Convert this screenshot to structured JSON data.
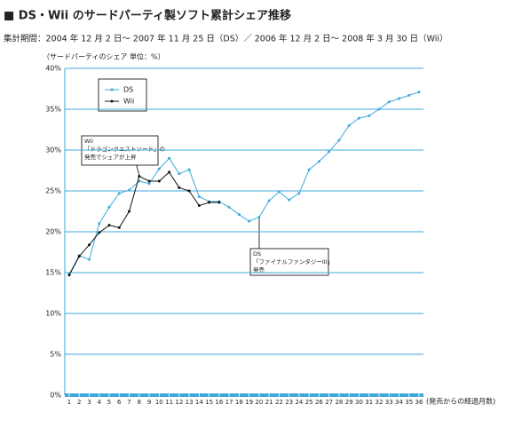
{
  "chart_data": {
    "type": "line",
    "title": "■ DS・Wii のサードパーティ製ソフト累計シェア推移",
    "subtitle": "集計期間：2004 年 12 月 2 日～ 2007 年 11 月 25 日（DS）／ 2006 年 12 月 2 日～ 2008 年 3 月 30 日（Wii）",
    "y_label": "（サードパーティのシェア 単位：%）",
    "x_label": "(発売からの経過月数)",
    "categories": [
      1,
      2,
      3,
      4,
      5,
      6,
      7,
      8,
      9,
      10,
      11,
      12,
      13,
      14,
      15,
      16,
      17,
      18,
      19,
      20,
      21,
      22,
      23,
      24,
      25,
      26,
      27,
      28,
      29,
      30,
      31,
      32,
      33,
      34,
      35,
      36
    ],
    "series": [
      {
        "name": "DS",
        "color": "#3ea8dc",
        "values": [
          14.8,
          17.1,
          16.6,
          21.0,
          23.0,
          24.7,
          25.1,
          26.2,
          25.9,
          27.7,
          29.0,
          27.1,
          27.6,
          24.3,
          23.7,
          23.7,
          23.0,
          22.1,
          21.3,
          21.8,
          23.8,
          24.9,
          23.9,
          24.7,
          27.6,
          28.6,
          29.8,
          31.2,
          33.0,
          33.9,
          34.2,
          35.0,
          35.9,
          36.3,
          36.7,
          37.1
        ]
      },
      {
        "name": "Wii",
        "color": "#111111",
        "values": [
          14.7,
          17.0,
          18.4,
          19.9,
          20.8,
          20.5,
          22.5,
          26.8,
          26.2,
          26.2,
          27.3,
          25.4,
          25.0,
          23.2,
          23.6,
          23.6,
          null,
          null,
          null,
          null,
          null,
          null,
          null,
          null,
          null,
          null,
          null,
          null,
          null,
          null,
          null,
          null,
          null,
          null,
          null,
          null
        ]
      }
    ],
    "ylim": [
      0,
      40
    ],
    "yticks": [
      {
        "value": 0,
        "label": "0%"
      },
      {
        "value": 5,
        "label": "5%"
      },
      {
        "value": 10,
        "label": "10%"
      },
      {
        "value": 15,
        "label": "15%"
      },
      {
        "value": 20,
        "label": "20%"
      },
      {
        "value": 25,
        "label": "25%"
      },
      {
        "value": 30,
        "label": "30%"
      },
      {
        "value": 35,
        "label": "35%"
      },
      {
        "value": 40,
        "label": "40%"
      }
    ],
    "grid": true,
    "legend": "upper-left",
    "annotations": [
      {
        "lines": [
          "Wii",
          "「ドラゴンクエストソード」の",
          "発売でシェアが上昇"
        ]
      },
      {
        "lines": [
          "DS",
          "「ファイナルファンタジーIII」",
          "発売"
        ]
      }
    ]
  }
}
